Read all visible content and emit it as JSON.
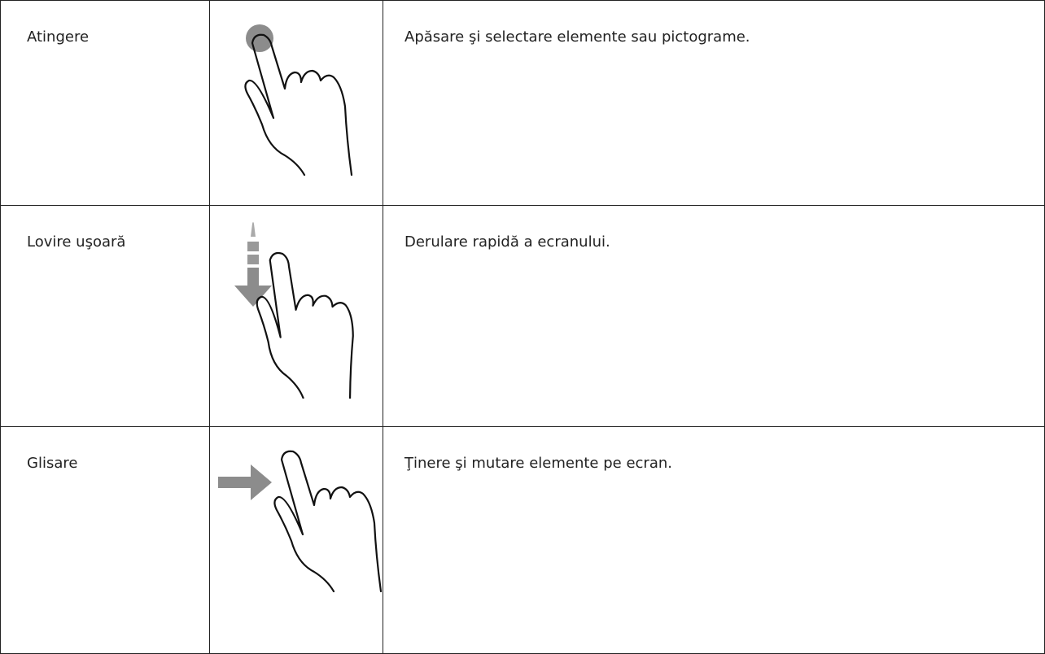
{
  "table": {
    "rows": [
      [
        "Atingere",
        null,
        "Apăsare şi selectare elemente sau pictograme."
      ],
      [
        "Lovire uşoară",
        null,
        "Derulare rapidă a ecranului."
      ],
      [
        "Glisare",
        null,
        "Ţinere şi mutare elemente pe ecran."
      ]
    ]
  }
}
